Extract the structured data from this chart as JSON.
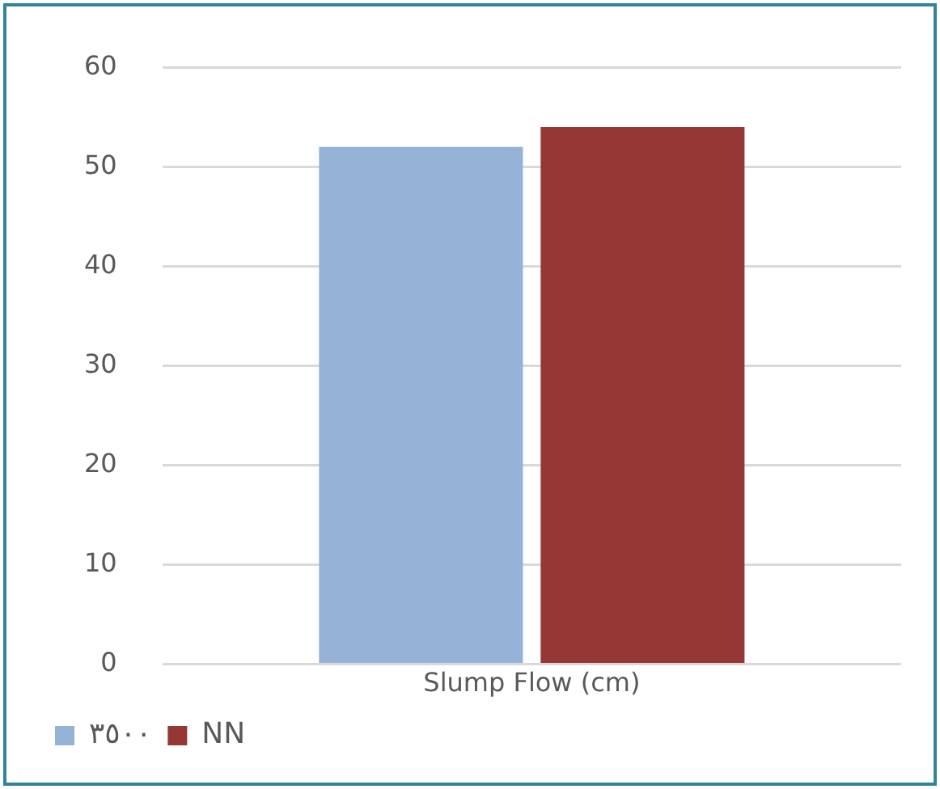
{
  "chart_data": {
    "type": "bar",
    "categories": [
      "Slump Flow (cm)"
    ],
    "series": [
      {
        "name": "٣٥٠٠",
        "color": "#95b3d7",
        "values": [
          52
        ]
      },
      {
        "name": "NN",
        "color": "#953735",
        "values": [
          54
        ]
      }
    ],
    "ylim": [
      0,
      60
    ],
    "yticks": [
      0,
      10,
      20,
      30,
      40,
      50,
      60
    ],
    "grid": "y",
    "legend": "bottom left"
  }
}
